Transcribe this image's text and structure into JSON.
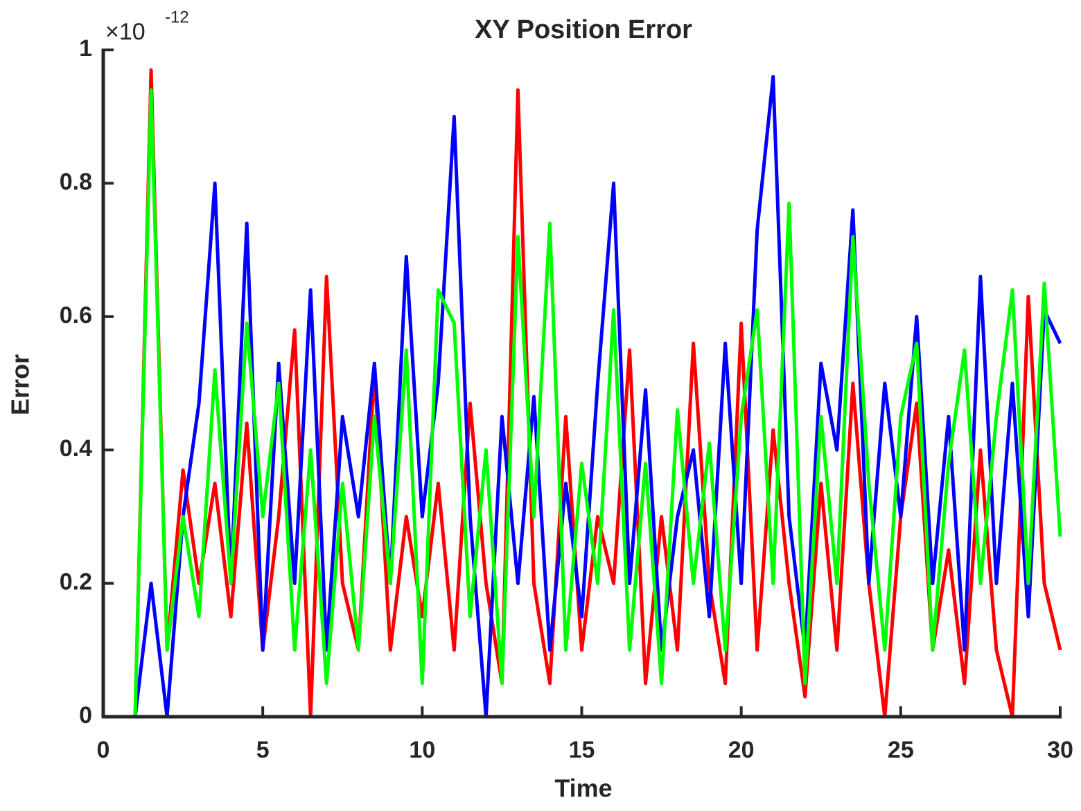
{
  "chart_data": {
    "type": "line",
    "title": "XY Position Error",
    "xlabel": "Time",
    "ylabel": "Error",
    "y_multiplier": {
      "base": "×10",
      "exponent": "-12"
    },
    "x": [
      1,
      1.5,
      2,
      2.5,
      3,
      3.5,
      4,
      4.5,
      5,
      5.5,
      6,
      6.5,
      7,
      7.5,
      8,
      8.5,
      9,
      9.5,
      10,
      10.5,
      11,
      11.5,
      12,
      12.5,
      13,
      13.5,
      14,
      14.5,
      15,
      15.5,
      16,
      16.5,
      17,
      17.5,
      18,
      18.5,
      19,
      19.5,
      20,
      20.5,
      21,
      21.5,
      22,
      22.5,
      23,
      23.5,
      24,
      24.5,
      25,
      25.5,
      26,
      26.5,
      27,
      27.5,
      28,
      28.5,
      29,
      29.5,
      30
    ],
    "series": [
      {
        "color": "#ff0000",
        "values": [
          0,
          0.97,
          0.1,
          0.37,
          0.2,
          0.35,
          0.15,
          0.44,
          0.1,
          0.3,
          0.58,
          0,
          0.66,
          0.2,
          0.1,
          0.52,
          0.1,
          0.3,
          0.15,
          0.35,
          0.1,
          0.47,
          0.2,
          0.05,
          0.94,
          0.2,
          0.05,
          0.45,
          0.1,
          0.3,
          0.2,
          0.55,
          0.05,
          0.3,
          0.1,
          0.56,
          0.2,
          0.05,
          0.59,
          0.1,
          0.43,
          0.2,
          0.03,
          0.35,
          0.1,
          0.5,
          0.2,
          0,
          0.3,
          0.47,
          0.1,
          0.25,
          0.05,
          0.4,
          0.1,
          0,
          0.63,
          0.2,
          0.1
        ]
      },
      {
        "color": "#0000ff",
        "values": [
          0,
          0.2,
          0,
          0.3,
          0.47,
          0.8,
          0.2,
          0.74,
          0.1,
          0.53,
          0.2,
          0.64,
          0.1,
          0.45,
          0.3,
          0.53,
          0.2,
          0.69,
          0.3,
          0.5,
          0.9,
          0.3,
          0,
          0.45,
          0.2,
          0.48,
          0.1,
          0.35,
          0.15,
          0.5,
          0.8,
          0.2,
          0.49,
          0.1,
          0.3,
          0.4,
          0.15,
          0.56,
          0.2,
          0.73,
          0.96,
          0.3,
          0.1,
          0.53,
          0.4,
          0.76,
          0.2,
          0.5,
          0.3,
          0.6,
          0.2,
          0.45,
          0.1,
          0.66,
          0.2,
          0.5,
          0.15,
          0.61,
          0.56
        ]
      },
      {
        "color": "#00ff00",
        "values": [
          0,
          0.94,
          0.1,
          0.3,
          0.15,
          0.52,
          0.2,
          0.59,
          0.3,
          0.5,
          0.1,
          0.4,
          0.05,
          0.35,
          0.1,
          0.45,
          0.2,
          0.55,
          0.05,
          0.64,
          0.59,
          0.15,
          0.4,
          0.05,
          0.72,
          0.3,
          0.74,
          0.1,
          0.38,
          0.2,
          0.61,
          0.1,
          0.38,
          0.05,
          0.46,
          0.2,
          0.41,
          0.1,
          0.45,
          0.61,
          0.2,
          0.77,
          0.05,
          0.45,
          0.2,
          0.72,
          0.35,
          0.1,
          0.45,
          0.56,
          0.1,
          0.38,
          0.55,
          0.2,
          0.45,
          0.64,
          0.2,
          0.65,
          0.27
        ]
      }
    ],
    "xlim": [
      0,
      30
    ],
    "xticks": [
      0,
      5,
      10,
      15,
      20,
      25,
      30
    ],
    "ylim": [
      0,
      1
    ],
    "yticks": [
      0,
      0.2,
      0.4,
      0.6,
      0.8,
      1
    ]
  }
}
